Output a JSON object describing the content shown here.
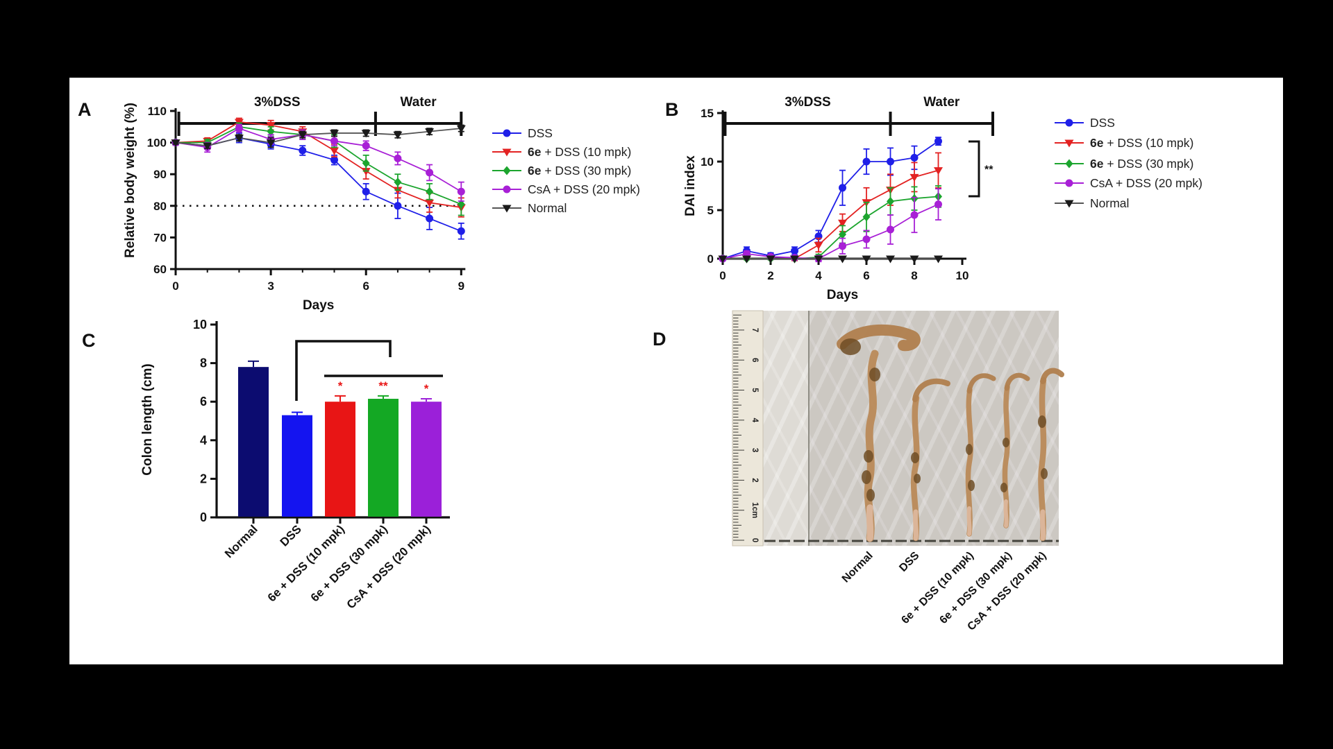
{
  "panels": {
    "a": "A",
    "b": "B",
    "c": "C",
    "d": "D"
  },
  "colors": {
    "background": "#000000",
    "figure_bg": "#ffffff",
    "dss_blue": "#1f1fe8",
    "e10_red": "#e32222",
    "e30_green": "#1ca52e",
    "csa_purple": "#a820d6",
    "normal_black": "#1a1a1a",
    "navy_bar": "#0c0c70",
    "sig_red": "#e81515"
  },
  "legend": [
    {
      "bold": "",
      "rest": "DSS",
      "color": "#1f1fe8",
      "marker": "circle"
    },
    {
      "bold": "6e",
      "rest": " + DSS (10 mpk)",
      "color": "#e32222",
      "marker": "triangle-down"
    },
    {
      "bold": "6e",
      "rest": " + DSS (30 mpk)",
      "color": "#1ca52e",
      "marker": "diamond"
    },
    {
      "bold": "",
      "rest": "CsA + DSS (20 mpk)",
      "color": "#a820d6",
      "marker": "circle"
    },
    {
      "bold": "",
      "rest": "Normal",
      "color": "#1a1a1a",
      "marker": "triangle-down",
      "line_color": "#555555"
    }
  ],
  "chart_data": [
    {
      "id": "A",
      "type": "line",
      "xlabel": "Days",
      "ylabel": "Relative body weight (%)",
      "xlim": [
        0,
        9
      ],
      "ylim": [
        60,
        110
      ],
      "xticks": [
        0,
        3,
        6,
        9
      ],
      "yticks": [
        60,
        70,
        80,
        90,
        100,
        110
      ],
      "reference_line_y": 80,
      "phase_labels": [
        {
          "text": "3%DSS",
          "from": 0.1,
          "to": 6.3
        },
        {
          "text": "Water",
          "from": 6.3,
          "to": 9
        }
      ],
      "x": [
        0,
        1,
        2,
        3,
        4,
        5,
        6,
        7,
        8,
        9
      ],
      "series": [
        {
          "name": "DSS",
          "values": [
            100,
            99,
            101.5,
            99.5,
            97.5,
            94.5,
            84.5,
            80,
            76,
            72
          ],
          "err": [
            0.8,
            1,
            1.5,
            1.5,
            1.5,
            1.5,
            2.5,
            4,
            3.5,
            2.5
          ]
        },
        {
          "name": "6e + DSS (10 mpk)",
          "values": [
            100,
            100.5,
            106.5,
            105.5,
            103.5,
            97.5,
            91,
            85,
            81,
            79.5
          ],
          "err": [
            0.8,
            1,
            1.2,
            1.5,
            1.5,
            2,
            2.5,
            2.5,
            3,
            3
          ]
        },
        {
          "name": "6e + DSS (30 mpk)",
          "values": [
            100,
            100,
            105,
            103.5,
            102.5,
            100.5,
            93.5,
            87.5,
            84.5,
            80.5
          ],
          "err": [
            0.8,
            1,
            1.2,
            1.5,
            1.5,
            2,
            2.5,
            2.5,
            2.5,
            3.5
          ]
        },
        {
          "name": "CsA + DSS (20 mpk)",
          "values": [
            100,
            98.5,
            104.5,
            101,
            102.5,
            100.5,
            99,
            95,
            90.5,
            84.5
          ],
          "err": [
            0.8,
            1.5,
            1.2,
            1.5,
            1.5,
            1.5,
            1.5,
            2,
            2.5,
            3
          ]
        },
        {
          "name": "Normal",
          "values": [
            100,
            99,
            101.5,
            100,
            102.5,
            103,
            103,
            102.5,
            103.5,
            104.5
          ],
          "err": [
            0.5,
            0.8,
            1,
            1.5,
            1,
            1,
            1,
            1,
            1,
            1
          ]
        }
      ]
    },
    {
      "id": "B",
      "type": "line",
      "xlabel": "Days",
      "ylabel": "DAI index",
      "xlim": [
        0,
        10
      ],
      "ylim": [
        0,
        15
      ],
      "xticks": [
        0,
        2,
        4,
        6,
        8,
        10
      ],
      "yticks": [
        0,
        5,
        10,
        15
      ],
      "reference_line_y": null,
      "annotation": "**",
      "phase_labels": [
        {
          "text": "3%DSS",
          "from": 0.1,
          "to": 7
        },
        {
          "text": "Water",
          "from": 7,
          "to": 10
        }
      ],
      "x": [
        0,
        1,
        2,
        3,
        4,
        5,
        6,
        7,
        8,
        9
      ],
      "series": [
        {
          "name": "DSS",
          "values": [
            0,
            0.8,
            0.3,
            0.8,
            2.3,
            7.3,
            10,
            10,
            10.4,
            12.1
          ],
          "err": [
            0.2,
            0.4,
            0.3,
            0.4,
            0.6,
            1.8,
            1.3,
            1.4,
            1.2,
            0.4
          ]
        },
        {
          "name": "6e + DSS (10 mpk)",
          "values": [
            0,
            0,
            0,
            0,
            1.4,
            3.7,
            5.8,
            7.1,
            8.4,
            9.1
          ],
          "err": [
            0,
            0.1,
            0.1,
            0.2,
            0.7,
            0.9,
            1.5,
            1.6,
            1.5,
            1.8
          ]
        },
        {
          "name": "6e + DSS (30 mpk)",
          "values": [
            0,
            0,
            0,
            0,
            0.15,
            2.5,
            4.3,
            5.9,
            6.2,
            6.4
          ],
          "err": [
            0,
            0.1,
            0.1,
            0.1,
            0.3,
            0.9,
            1.5,
            1.4,
            1.2,
            1.1
          ]
        },
        {
          "name": "CsA + DSS (20 mpk)",
          "values": [
            0,
            0.5,
            0.2,
            0.1,
            0,
            1.3,
            2,
            3,
            4.5,
            5.6
          ],
          "err": [
            0,
            0.3,
            0.2,
            0.2,
            0.3,
            0.8,
            0.9,
            1.5,
            1.8,
            1.6
          ]
        },
        {
          "name": "Normal",
          "values": [
            0,
            0,
            0,
            0,
            0,
            0,
            0,
            0,
            0,
            0
          ],
          "err": [
            0,
            0,
            0,
            0,
            0,
            0,
            0,
            0,
            0,
            0
          ]
        }
      ]
    },
    {
      "id": "C",
      "type": "bar",
      "ylabel": "Colon length (cm)",
      "ylim": [
        0,
        10
      ],
      "yticks": [
        0,
        2,
        4,
        6,
        8,
        10
      ],
      "categories": [
        "Normal",
        "DSS",
        "6e + DSS (10 mpk)",
        "6e + DSS (30 mpk)",
        "CsA + DSS (20 mpk)"
      ],
      "values": [
        7.8,
        5.3,
        6.0,
        6.15,
        6.0
      ],
      "errors": [
        0.3,
        0.15,
        0.3,
        0.15,
        0.15
      ],
      "bar_colors": [
        "#0c0c70",
        "#1414f0",
        "#e81515",
        "#14a824",
        "#9b20d9"
      ],
      "sig_labels": [
        "",
        "",
        "*",
        "**",
        "*"
      ],
      "sig_color": "#e81515"
    }
  ],
  "panel_d": {
    "ruler_numbers": [
      "0",
      "1cm",
      "2",
      "3",
      "4",
      "5",
      "6",
      "7"
    ],
    "labels": [
      "Normal",
      "DSS",
      "6e + DSS (10 mpk)",
      "6e + DSS (30 mpk)",
      "CsA + DSS (20 mpk)"
    ]
  }
}
